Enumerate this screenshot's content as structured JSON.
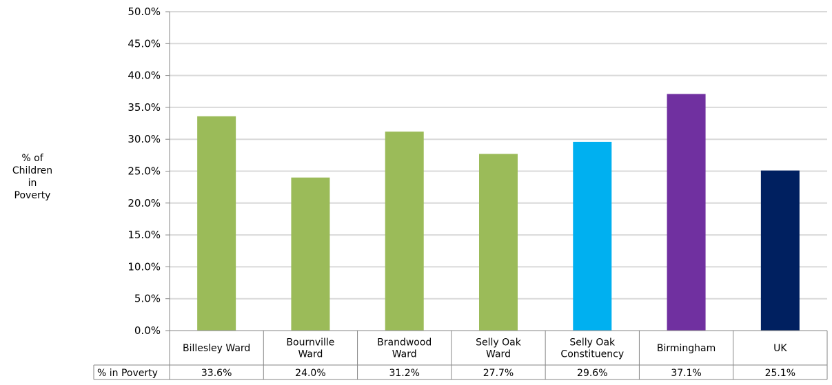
{
  "chart_data": {
    "type": "bar",
    "categories": [
      [
        "Billesley Ward"
      ],
      [
        "Bournville",
        "Ward"
      ],
      [
        "Brandwood",
        "Ward"
      ],
      [
        "Selly Oak",
        "Ward"
      ],
      [
        "Selly Oak",
        "Constituency"
      ],
      [
        "Birmingham"
      ],
      [
        "UK"
      ]
    ],
    "values": [
      33.6,
      24.0,
      31.2,
      27.7,
      29.6,
      37.1,
      25.1
    ],
    "value_labels": [
      "33.6%",
      "24.0%",
      "31.2%",
      "27.7%",
      "29.6%",
      "37.1%",
      "25.1%"
    ],
    "colors": [
      "#9bbb59",
      "#9bbb59",
      "#9bbb59",
      "#9bbb59",
      "#00b0f0",
      "#7030a0",
      "#002060"
    ],
    "ylim": [
      0,
      50
    ],
    "yticks": [
      "0.0%",
      "5.0%",
      "10.0%",
      "15.0%",
      "20.0%",
      "25.0%",
      "30.0%",
      "35.0%",
      "40.0%",
      "45.0%",
      "50.0%"
    ],
    "ylabel_lines": [
      "% of",
      "Children",
      "in",
      "Poverty"
    ],
    "table_row_label": "% in Poverty",
    "grid": true
  }
}
